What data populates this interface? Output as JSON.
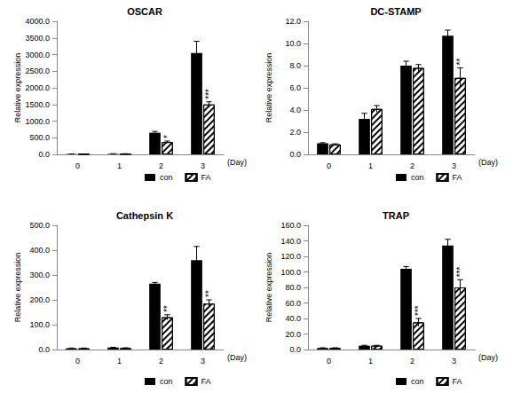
{
  "chart_data": [
    {
      "type": "bar",
      "title": "OSCAR",
      "x_label": "(Day)",
      "y_label": "Relative expression",
      "categories": [
        "0",
        "1",
        "2",
        "3"
      ],
      "series": [
        {
          "name": "con",
          "color": "#000000",
          "marker": "solid",
          "values": [
            10,
            15,
            650,
            3050
          ],
          "errors": [
            3,
            4,
            40,
            350
          ]
        },
        {
          "name": "FA",
          "color": "#ffffff",
          "marker": "hatch",
          "values": [
            10,
            15,
            370,
            1500
          ],
          "errors": [
            3,
            4,
            30,
            80
          ]
        }
      ],
      "annotations": [
        {
          "category": "2",
          "series": "FA",
          "text": "*"
        },
        {
          "category": "3",
          "series": "FA",
          "text": "***"
        }
      ],
      "ylim": [
        0,
        4000
      ],
      "yticks": [
        {
          "value": 0,
          "label": "0.0"
        },
        {
          "value": 500,
          "label": "500.0"
        },
        {
          "value": 1000,
          "label": "1000.0"
        },
        {
          "value": 1500,
          "label": "1500.0"
        },
        {
          "value": 2000,
          "label": "2000.0"
        },
        {
          "value": 2500,
          "label": "2500.0"
        },
        {
          "value": 3000,
          "label": "3000.0"
        },
        {
          "value": 3500,
          "label": "3500.0"
        },
        {
          "value": 4000,
          "label": "4000.0"
        }
      ],
      "grid": false,
      "legend": "bottom"
    },
    {
      "type": "bar",
      "title": "DC-STAMP",
      "x_label": "(Day)",
      "y_label": "Relative expression",
      "categories": [
        "0",
        "1",
        "2",
        "3"
      ],
      "series": [
        {
          "name": "con",
          "color": "#000000",
          "marker": "solid",
          "values": [
            1.0,
            3.2,
            8.0,
            10.7
          ],
          "errors": [
            0.05,
            0.5,
            0.4,
            0.5
          ]
        },
        {
          "name": "FA",
          "color": "#ffffff",
          "marker": "hatch",
          "values": [
            0.9,
            4.1,
            7.8,
            6.9
          ],
          "errors": [
            0.05,
            0.3,
            0.3,
            0.9
          ]
        }
      ],
      "annotations": [
        {
          "category": "3",
          "series": "FA",
          "text": "**"
        }
      ],
      "ylim": [
        0,
        12
      ],
      "yticks": [
        {
          "value": 0,
          "label": "0.0"
        },
        {
          "value": 2,
          "label": "2.0"
        },
        {
          "value": 4,
          "label": "4.0"
        },
        {
          "value": 6,
          "label": "6.0"
        },
        {
          "value": 8,
          "label": "8.0"
        },
        {
          "value": 10,
          "label": "10.0"
        },
        {
          "value": 12,
          "label": "12.0"
        }
      ],
      "grid": false,
      "legend": "bottom"
    },
    {
      "type": "bar",
      "title": "Cathepsin K",
      "x_label": "(Day)",
      "y_label": "Relative expression",
      "categories": [
        "0",
        "1",
        "2",
        "3"
      ],
      "series": [
        {
          "name": "con",
          "color": "#000000",
          "marker": "solid",
          "values": [
            5,
            8,
            265,
            360
          ],
          "errors": [
            1,
            1,
            5,
            55
          ]
        },
        {
          "name": "FA",
          "color": "#ffffff",
          "marker": "hatch",
          "values": [
            5,
            6,
            130,
            185
          ],
          "errors": [
            1,
            1,
            10,
            15
          ]
        }
      ],
      "annotations": [
        {
          "category": "2",
          "series": "FA",
          "text": "**"
        },
        {
          "category": "3",
          "series": "FA",
          "text": "**"
        }
      ],
      "ylim": [
        0,
        500
      ],
      "yticks": [
        {
          "value": 0,
          "label": "0.0"
        },
        {
          "value": 100,
          "label": "100.0"
        },
        {
          "value": 200,
          "label": "200.0"
        },
        {
          "value": 300,
          "label": "300.0"
        },
        {
          "value": 400,
          "label": "400.0"
        },
        {
          "value": 500,
          "label": "500.0"
        }
      ],
      "grid": false,
      "legend": "bottom"
    },
    {
      "type": "bar",
      "title": "TRAP",
      "x_label": "(Day)",
      "y_label": "Relative expression",
      "categories": [
        "0",
        "1",
        "2",
        "3"
      ],
      "series": [
        {
          "name": "con",
          "color": "#000000",
          "marker": "solid",
          "values": [
            2,
            5,
            104,
            134
          ],
          "errors": [
            0.3,
            0.5,
            3,
            8
          ]
        },
        {
          "name": "FA",
          "color": "#ffffff",
          "marker": "hatch",
          "values": [
            2,
            5,
            35,
            80
          ],
          "errors": [
            0.3,
            0.5,
            5,
            10
          ]
        }
      ],
      "annotations": [
        {
          "category": "2",
          "series": "FA",
          "text": "***"
        },
        {
          "category": "3",
          "series": "FA",
          "text": "***"
        }
      ],
      "ylim": [
        0,
        160
      ],
      "yticks": [
        {
          "value": 0,
          "label": "0.0"
        },
        {
          "value": 20,
          "label": "20.0"
        },
        {
          "value": 40,
          "label": "40.0"
        },
        {
          "value": 60,
          "label": "60.0"
        },
        {
          "value": 80,
          "label": "80.0"
        },
        {
          "value": 100,
          "label": "100.0"
        },
        {
          "value": 120,
          "label": "120.0"
        },
        {
          "value": 140,
          "label": "140.0"
        },
        {
          "value": 160,
          "label": "160.0"
        }
      ],
      "grid": false,
      "legend": "bottom"
    }
  ]
}
